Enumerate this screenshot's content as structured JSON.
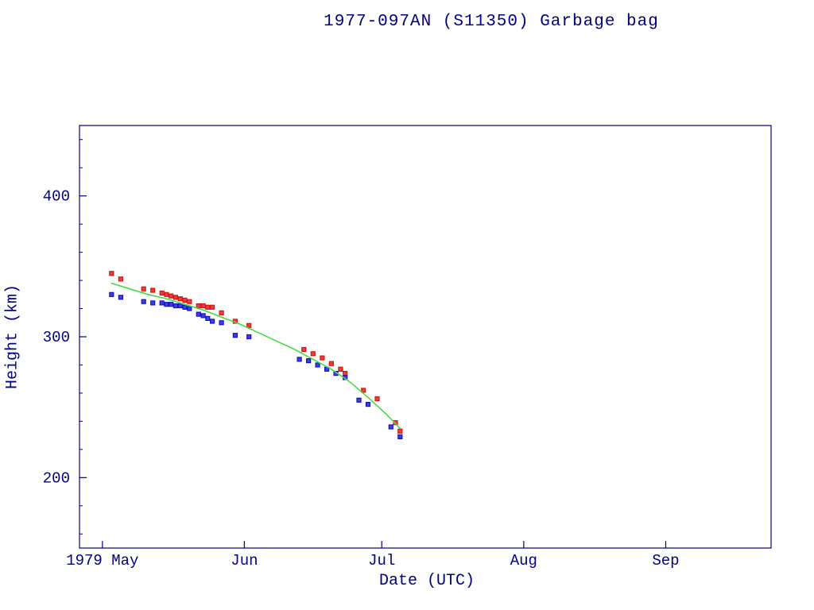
{
  "colors": {
    "axis": "#000080",
    "title_text": "#000080",
    "background": "#ffffff",
    "apogee": "#dd1111",
    "perigee": "#1111cc",
    "fit_line": "#44dd44"
  },
  "chart_data": {
    "type": "scatter",
    "title": "1977-097AN (S11350) Garbage bag",
    "xlabel": "Date (UTC)",
    "ylabel": "Height (km)",
    "x_unit": "day of year 1979",
    "xlim_days": [
      116,
      267
    ],
    "ylim": [
      150,
      450
    ],
    "y_major_ticks": [
      200,
      300,
      400
    ],
    "y_minor_step": 20,
    "x_ticks": [
      {
        "day": 121,
        "label": "1979 May"
      },
      {
        "day": 152,
        "label": "Jun"
      },
      {
        "day": 182,
        "label": "Jul"
      },
      {
        "day": 213,
        "label": "Aug"
      },
      {
        "day": 244,
        "label": "Sep"
      }
    ],
    "grid": false,
    "legend": "none",
    "series": [
      {
        "name": "apogee_height",
        "type": "scatter",
        "marker": "square",
        "color": "#dd1111",
        "x": [
          123,
          125,
          130,
          132,
          134,
          135,
          136,
          137,
          138,
          139,
          140,
          142,
          143,
          144,
          145,
          147,
          150,
          153,
          165,
          167,
          169,
          171,
          173,
          174,
          178,
          181,
          185,
          186
        ],
        "y": [
          345,
          341,
          334,
          333,
          331,
          330,
          329,
          328,
          327,
          326,
          325,
          322,
          322,
          321,
          321,
          317,
          311,
          308,
          291,
          288,
          285,
          281,
          277,
          274,
          262,
          256,
          239,
          233
        ]
      },
      {
        "name": "perigee_height",
        "type": "scatter",
        "marker": "square",
        "color": "#1111cc",
        "x": [
          123,
          125,
          130,
          132,
          134,
          135,
          136,
          137,
          138,
          139,
          140,
          142,
          143,
          144,
          145,
          147,
          150,
          153,
          164,
          166,
          168,
          170,
          172,
          174,
          177,
          179,
          184,
          186
        ],
        "y": [
          330,
          328,
          325,
          324,
          324,
          323,
          323,
          322,
          322,
          321,
          320,
          316,
          315,
          313,
          311,
          310,
          301,
          300,
          284,
          283,
          280,
          277,
          274,
          271,
          255,
          252,
          236,
          229
        ]
      },
      {
        "name": "mean_height_fit",
        "type": "line",
        "color": "#44dd44",
        "x": [
          123,
          127,
          131,
          135,
          139,
          143,
          147,
          151,
          155,
          159,
          163,
          167,
          171,
          175,
          179,
          183,
          186
        ],
        "y": [
          338,
          334,
          330,
          327,
          323,
          319,
          314,
          309,
          303,
          297,
          291,
          284,
          277,
          268,
          257,
          245,
          235
        ]
      }
    ]
  }
}
